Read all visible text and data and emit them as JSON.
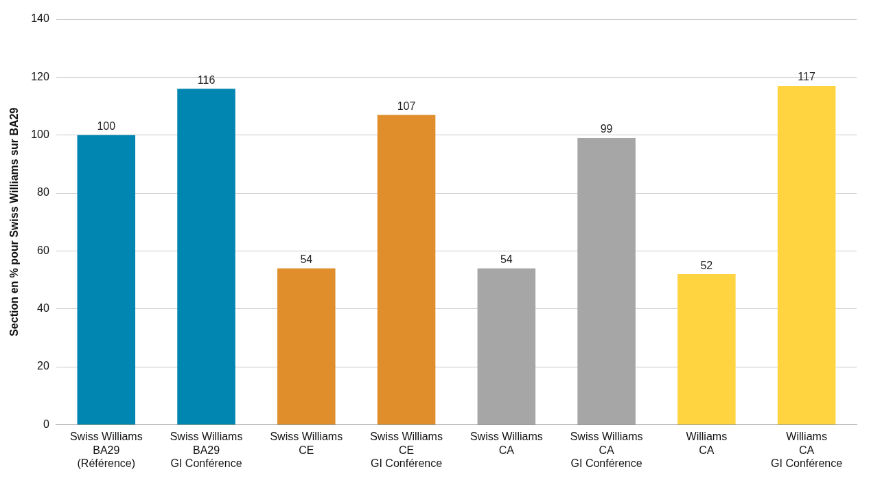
{
  "chart_data": {
    "type": "bar",
    "ylabel": "Section en % pour Swiss Williams sur BA29",
    "categories": [
      "Swiss Williams\nBA29\n(Référence)",
      "Swiss Williams\nBA29\nGI Conférence",
      "Swiss Williams\nCE",
      "Swiss Williams\nCE\nGI Conférence",
      "Swiss Williams\nCA",
      "Swiss Williams\nCA\nGI Conférence",
      "Williams\nCA",
      "Williams\nCA\nGI Conférence"
    ],
    "values": [
      100,
      116,
      54,
      107,
      54,
      99,
      52,
      117
    ],
    "colors": [
      "#0086b0",
      "#0086b0",
      "#e08e2b",
      "#e08e2b",
      "#a6a6a6",
      "#a6a6a6",
      "#ffd440",
      "#ffd440"
    ],
    "ylim": [
      0,
      140
    ],
    "yticks": [
      0,
      20,
      40,
      60,
      80,
      100,
      120,
      140
    ],
    "grid": "y",
    "data_labels": true,
    "legend": false
  }
}
